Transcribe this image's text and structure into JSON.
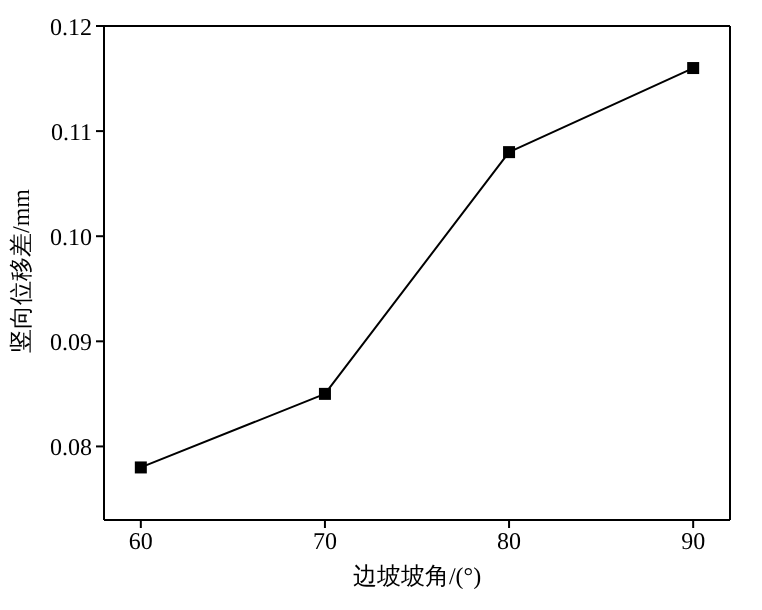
{
  "chart_data": {
    "type": "line",
    "xlabel": "边坡坡角/(°)",
    "ylabel": "竖向位移差/mm",
    "x": [
      60,
      70,
      80,
      90
    ],
    "series": [
      {
        "color": "#000000",
        "values": [
          0.078,
          0.085,
          0.108,
          0.116
        ]
      }
    ],
    "xlim": [
      58,
      92
    ],
    "xticks": [
      60,
      70,
      80,
      90
    ],
    "ylim": [
      0.073,
      0.12
    ],
    "yticks": [
      {
        "value": 0.08,
        "label": "0.08"
      },
      {
        "value": 0.09,
        "label": "0.09"
      },
      {
        "value": 0.1,
        "label": "0.10"
      },
      {
        "value": 0.11,
        "label": "0.11"
      },
      {
        "value": 0.12,
        "label": "0.12"
      }
    ],
    "grid": false,
    "legend": false,
    "marker": "square",
    "line_style": "solid"
  }
}
